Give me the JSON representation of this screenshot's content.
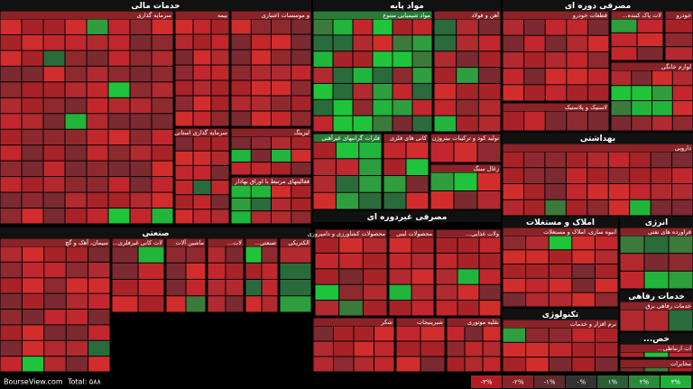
{
  "groups": [
    {
      "title": "خدمات مالی",
      "subsectors": [
        "سرمایه گذاری",
        "بیمه",
        "و موسسات اعتباری",
        "سرمایه گذاری استانی",
        "لیزینگ",
        "فعالیتهای مرتبط با اوراق بهادار"
      ]
    },
    {
      "title": "مواد پایه",
      "subsectors": [
        "مواد شیمیایی متنوع",
        "آهن و فولاد",
        "فلزات گرانبهای غیرآهنی",
        "کانی های فلزی",
        "تولید کود و ترکیبات نیتروژن",
        "زغال سنگ"
      ]
    },
    {
      "title": "مصرفی دوره ای",
      "subsectors": [
        "قطعات خودرو",
        "لاستیک و پلاستیک",
        "...لات پاک کننده",
        "خودرو",
        "لوازم خانگی"
      ]
    },
    {
      "title": "بهداشتی",
      "subsectors": [
        "دارویی"
      ]
    },
    {
      "title": "صنعتی",
      "subsectors": [
        "سیمان، آهک و گچ",
        "...لات کانی غیرفلزی",
        "ماشین آلات",
        "...لات",
        "...صنعتی",
        "الکتریکی"
      ]
    },
    {
      "title": "مصرفی غیردوره ای",
      "subsectors": [
        "محصولات کشاورزی و دامپروری",
        "محصولات لبنی",
        "...ولات غذایی",
        "شکر",
        "شیرینیجات",
        "نقلیه موتوری"
      ]
    },
    {
      "title": "املاک و مستغلات",
      "subsectors": [
        "انبوه سازی، املاک و مستغلات"
      ]
    },
    {
      "title": "انرژی",
      "subsectors": [
        "فراورده های نفتی"
      ]
    },
    {
      "title": "تکنولوژی",
      "subsectors": [
        "نرم افزار و خدمات"
      ]
    },
    {
      "title": "خدمات رفاهی",
      "subsectors": [
        "خدمات رفاهی برق"
      ]
    },
    {
      "title": "...خص",
      "subsectors": [
        "...ات ارتباطی",
        "مخابرات"
      ]
    }
  ],
  "legend": [
    "-۳%",
    "-۲%",
    "-۱%",
    "۰%",
    "۱%",
    "۲%",
    "۳%"
  ],
  "footer": {
    "site": "BourseView.com",
    "total": "Total: ۵۸۸"
  }
}
